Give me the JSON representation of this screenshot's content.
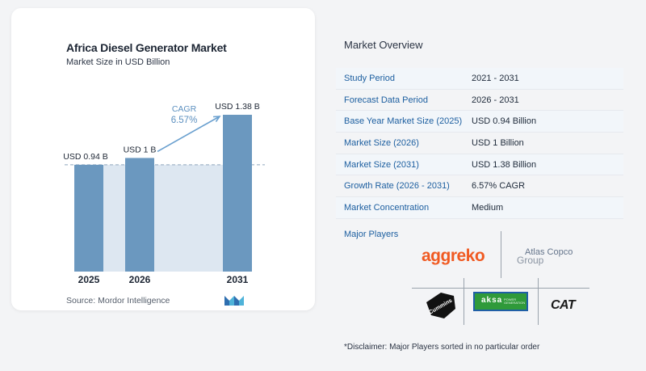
{
  "chart_data": {
    "type": "bar",
    "title": "Africa Diesel Generator Market",
    "subtitle": "Market Size in USD Billion",
    "categories": [
      "2025",
      "2026",
      "2031"
    ],
    "values": [
      0.94,
      1.0,
      1.38
    ],
    "value_labels": [
      "USD 0.94 B",
      "USD 1 B",
      "USD 1.38 B"
    ],
    "unit": "USD Billion",
    "annotation": {
      "label": "CAGR",
      "value": "6.57%"
    },
    "reference_line": {
      "value": 0.94,
      "style": "dashed"
    },
    "ylim": [
      0,
      1.38
    ],
    "grid": false,
    "legend": "none",
    "colors": {
      "bar": "#6b98bf",
      "bar_dark": "#5a86ad",
      "band": "#dde7f1",
      "arrow": "#6aa0cf",
      "cagr_text": "#5b8fbf"
    }
  },
  "source": "Source:  Mordor Intelligence",
  "overview": {
    "title": "Market Overview",
    "rows": [
      {
        "label": "Study Period",
        "value": "2021 - 2031"
      },
      {
        "label": "Forecast Data Period",
        "value": "2026 - 2031"
      },
      {
        "label": "Base Year Market Size (2025)",
        "value": "USD 0.94 Billion"
      },
      {
        "label": "Market Size (2026)",
        "value": "USD 1 Billion"
      },
      {
        "label": "Market Size (2031)",
        "value": "USD 1.38 Billion"
      },
      {
        "label": "Growth Rate (2026 - 2031)",
        "value": "6.57% CAGR"
      },
      {
        "label": "Market Concentration",
        "value": "Medium"
      }
    ],
    "players_label": "Major Players"
  },
  "players": {
    "aggreko": "aggreko",
    "atlas_line1": "Atlas Copco",
    "atlas_line2": "Group",
    "cummins": "Cummins",
    "aksa": "aksa",
    "aksa_sub": "POWER GENERATION",
    "cat": "CAT"
  },
  "disclaimer": "*Disclaimer: Major Players sorted in no particular order"
}
